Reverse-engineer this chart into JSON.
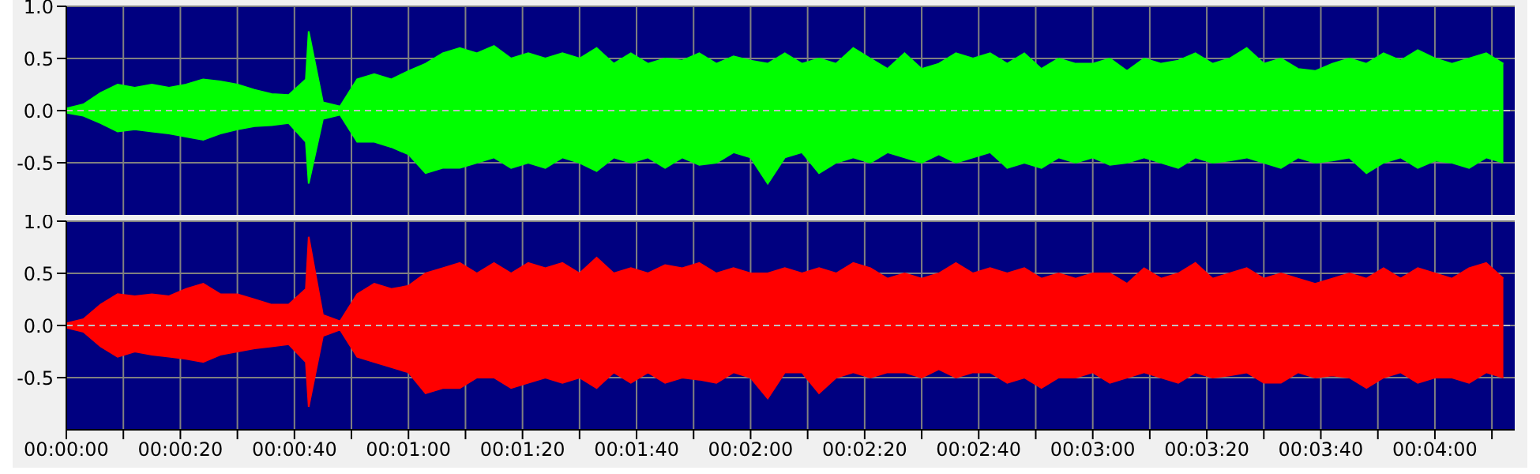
{
  "chart_data": [
    {
      "type": "area",
      "x": [
        0,
        3,
        6,
        9,
        12,
        15,
        18,
        21,
        24,
        27,
        30,
        33,
        36,
        39,
        42,
        42.5,
        45,
        48,
        51,
        54,
        57,
        60,
        63,
        66,
        69,
        72,
        75,
        78,
        81,
        84,
        87,
        90,
        93,
        96,
        99,
        102,
        105,
        108,
        111,
        114,
        117,
        120,
        123,
        126,
        129,
        132,
        135,
        138,
        141,
        144,
        147,
        150,
        153,
        156,
        159,
        162,
        165,
        168,
        171,
        174,
        177,
        180,
        183,
        186,
        189,
        192,
        195,
        198,
        201,
        204,
        207,
        210,
        213,
        216,
        219,
        222,
        225,
        228,
        231,
        234,
        237,
        240,
        243,
        246,
        249,
        252
      ],
      "series": [
        {
          "color": "#00ff00",
          "values": [
            0.02,
            0.06,
            0.17,
            0.25,
            0.22,
            0.25,
            0.22,
            0.25,
            0.3,
            0.28,
            0.25,
            0.2,
            0.16,
            0.15,
            0.3,
            0.76,
            0.08,
            0.04,
            0.3,
            0.35,
            0.3,
            0.38,
            0.45,
            0.55,
            0.6,
            0.55,
            0.62,
            0.5,
            0.55,
            0.5,
            0.55,
            0.5,
            0.6,
            0.45,
            0.55,
            0.45,
            0.5,
            0.48,
            0.55,
            0.45,
            0.52,
            0.48,
            0.45,
            0.55,
            0.45,
            0.5,
            0.45,
            0.6,
            0.5,
            0.4,
            0.55,
            0.4,
            0.45,
            0.55,
            0.5,
            0.55,
            0.45,
            0.55,
            0.4,
            0.5,
            0.45,
            0.45,
            0.5,
            0.38,
            0.5,
            0.45,
            0.48,
            0.55,
            0.45,
            0.5,
            0.6,
            0.45,
            0.5,
            0.4,
            0.38,
            0.45,
            0.5,
            0.45,
            0.55,
            0.48,
            0.58,
            0.5,
            0.45,
            0.5,
            0.55,
            0.45
          ]
        },
        {
          "color": "#00ff00",
          "values": [
            -0.02,
            -0.05,
            -0.12,
            -0.2,
            -0.18,
            -0.2,
            -0.22,
            -0.25,
            -0.28,
            -0.22,
            -0.18,
            -0.15,
            -0.14,
            -0.12,
            -0.3,
            -0.7,
            -0.08,
            -0.04,
            -0.3,
            -0.3,
            -0.35,
            -0.42,
            -0.6,
            -0.55,
            -0.55,
            -0.5,
            -0.45,
            -0.55,
            -0.5,
            -0.55,
            -0.45,
            -0.5,
            -0.58,
            -0.45,
            -0.5,
            -0.45,
            -0.55,
            -0.45,
            -0.52,
            -0.5,
            -0.4,
            -0.45,
            -0.7,
            -0.45,
            -0.4,
            -0.6,
            -0.5,
            -0.45,
            -0.5,
            -0.4,
            -0.45,
            -0.5,
            -0.42,
            -0.5,
            -0.45,
            -0.4,
            -0.55,
            -0.5,
            -0.55,
            -0.45,
            -0.5,
            -0.45,
            -0.52,
            -0.5,
            -0.45,
            -0.5,
            -0.55,
            -0.45,
            -0.5,
            -0.48,
            -0.45,
            -0.5,
            -0.55,
            -0.45,
            -0.5,
            -0.48,
            -0.45,
            -0.6,
            -0.5,
            -0.45,
            -0.55,
            -0.48,
            -0.5,
            -0.55,
            -0.45,
            -0.5
          ]
        }
      ],
      "xlim": [
        0,
        254
      ],
      "xticks": [
        0,
        10,
        20,
        30,
        40,
        50,
        60,
        70,
        80,
        90,
        100,
        110,
        120,
        130,
        140,
        150,
        160,
        170,
        180,
        190,
        200,
        210,
        220,
        230,
        240,
        250
      ],
      "ylim": [
        -1,
        1
      ],
      "yticks": [
        {
          "value": 1,
          "label": "1.0"
        },
        {
          "value": 0.5,
          "label": "0.5"
        },
        {
          "value": 0,
          "label": "0.0"
        },
        {
          "value": -0.5,
          "label": "-0.5"
        }
      ],
      "ref_lines": [
        {
          "axis": "y",
          "value": 0,
          "label": null,
          "color": "#c0c0c0",
          "line_style": "dashed"
        }
      ],
      "grid": true,
      "tick_labels": "y"
    },
    {
      "type": "area",
      "x": [
        0,
        3,
        6,
        9,
        12,
        15,
        18,
        21,
        24,
        27,
        30,
        33,
        36,
        39,
        42,
        42.5,
        45,
        48,
        51,
        54,
        57,
        60,
        63,
        66,
        69,
        72,
        75,
        78,
        81,
        84,
        87,
        90,
        93,
        96,
        99,
        102,
        105,
        108,
        111,
        114,
        117,
        120,
        123,
        126,
        129,
        132,
        135,
        138,
        141,
        144,
        147,
        150,
        153,
        156,
        159,
        162,
        165,
        168,
        171,
        174,
        177,
        180,
        183,
        186,
        189,
        192,
        195,
        198,
        201,
        204,
        207,
        210,
        213,
        216,
        219,
        222,
        225,
        228,
        231,
        234,
        237,
        240,
        243,
        246,
        249,
        252
      ],
      "series": [
        {
          "color": "#ff0000",
          "values": [
            0.02,
            0.06,
            0.2,
            0.3,
            0.28,
            0.3,
            0.28,
            0.35,
            0.4,
            0.3,
            0.3,
            0.25,
            0.2,
            0.2,
            0.35,
            0.85,
            0.1,
            0.04,
            0.3,
            0.4,
            0.35,
            0.38,
            0.5,
            0.55,
            0.6,
            0.5,
            0.6,
            0.5,
            0.6,
            0.55,
            0.6,
            0.5,
            0.65,
            0.5,
            0.55,
            0.5,
            0.58,
            0.55,
            0.6,
            0.5,
            0.55,
            0.5,
            0.5,
            0.55,
            0.5,
            0.55,
            0.5,
            0.6,
            0.55,
            0.45,
            0.5,
            0.45,
            0.5,
            0.6,
            0.5,
            0.55,
            0.5,
            0.55,
            0.45,
            0.5,
            0.45,
            0.5,
            0.5,
            0.4,
            0.55,
            0.45,
            0.5,
            0.6,
            0.45,
            0.5,
            0.55,
            0.45,
            0.5,
            0.45,
            0.4,
            0.45,
            0.5,
            0.45,
            0.55,
            0.45,
            0.55,
            0.5,
            0.45,
            0.55,
            0.6,
            0.45
          ]
        },
        {
          "color": "#ff0000",
          "values": [
            -0.02,
            -0.06,
            -0.2,
            -0.3,
            -0.25,
            -0.28,
            -0.3,
            -0.32,
            -0.35,
            -0.28,
            -0.25,
            -0.22,
            -0.2,
            -0.18,
            -0.35,
            -0.78,
            -0.1,
            -0.04,
            -0.3,
            -0.35,
            -0.4,
            -0.45,
            -0.65,
            -0.6,
            -0.6,
            -0.5,
            -0.5,
            -0.6,
            -0.55,
            -0.5,
            -0.55,
            -0.5,
            -0.6,
            -0.45,
            -0.55,
            -0.45,
            -0.55,
            -0.5,
            -0.52,
            -0.55,
            -0.45,
            -0.5,
            -0.7,
            -0.45,
            -0.45,
            -0.65,
            -0.5,
            -0.45,
            -0.5,
            -0.45,
            -0.45,
            -0.5,
            -0.42,
            -0.5,
            -0.45,
            -0.45,
            -0.55,
            -0.5,
            -0.6,
            -0.5,
            -0.5,
            -0.45,
            -0.55,
            -0.5,
            -0.45,
            -0.5,
            -0.55,
            -0.45,
            -0.5,
            -0.48,
            -0.45,
            -0.55,
            -0.55,
            -0.45,
            -0.5,
            -0.48,
            -0.5,
            -0.6,
            -0.5,
            -0.45,
            -0.55,
            -0.5,
            -0.5,
            -0.55,
            -0.45,
            -0.5
          ]
        }
      ],
      "xlim": [
        0,
        254
      ],
      "xticks": [
        {
          "value": 0,
          "label": "00:00:00"
        },
        {
          "value": 10,
          "label": null
        },
        {
          "value": 20,
          "label": "00:00:20"
        },
        {
          "value": 30,
          "label": null
        },
        {
          "value": 40,
          "label": "00:00:40"
        },
        {
          "value": 50,
          "label": null
        },
        {
          "value": 60,
          "label": "00:01:00"
        },
        {
          "value": 70,
          "label": null
        },
        {
          "value": 80,
          "label": "00:01:20"
        },
        {
          "value": 90,
          "label": null
        },
        {
          "value": 100,
          "label": "00:01:40"
        },
        {
          "value": 110,
          "label": null
        },
        {
          "value": 120,
          "label": "00:02:00"
        },
        {
          "value": 130,
          "label": null
        },
        {
          "value": 140,
          "label": "00:02:20"
        },
        {
          "value": 150,
          "label": null
        },
        {
          "value": 160,
          "label": "00:02:40"
        },
        {
          "value": 170,
          "label": null
        },
        {
          "value": 180,
          "label": "00:03:00"
        },
        {
          "value": 190,
          "label": null
        },
        {
          "value": 200,
          "label": "00:03:20"
        },
        {
          "value": 210,
          "label": null
        },
        {
          "value": 220,
          "label": "00:03:40"
        },
        {
          "value": 230,
          "label": null
        },
        {
          "value": 240,
          "label": "00:04:00"
        },
        {
          "value": 250,
          "label": null
        }
      ],
      "ylim": [
        -1,
        1
      ],
      "yticks": [
        {
          "value": 1,
          "label": "1.0"
        },
        {
          "value": 0.5,
          "label": "0.5"
        },
        {
          "value": 0,
          "label": "0.0"
        },
        {
          "value": -0.5,
          "label": "-0.5"
        }
      ],
      "ref_lines": [
        {
          "axis": "y",
          "value": 0,
          "label": null,
          "color": "#c0c0c0",
          "line_style": "dashed"
        }
      ],
      "grid": true
    }
  ]
}
